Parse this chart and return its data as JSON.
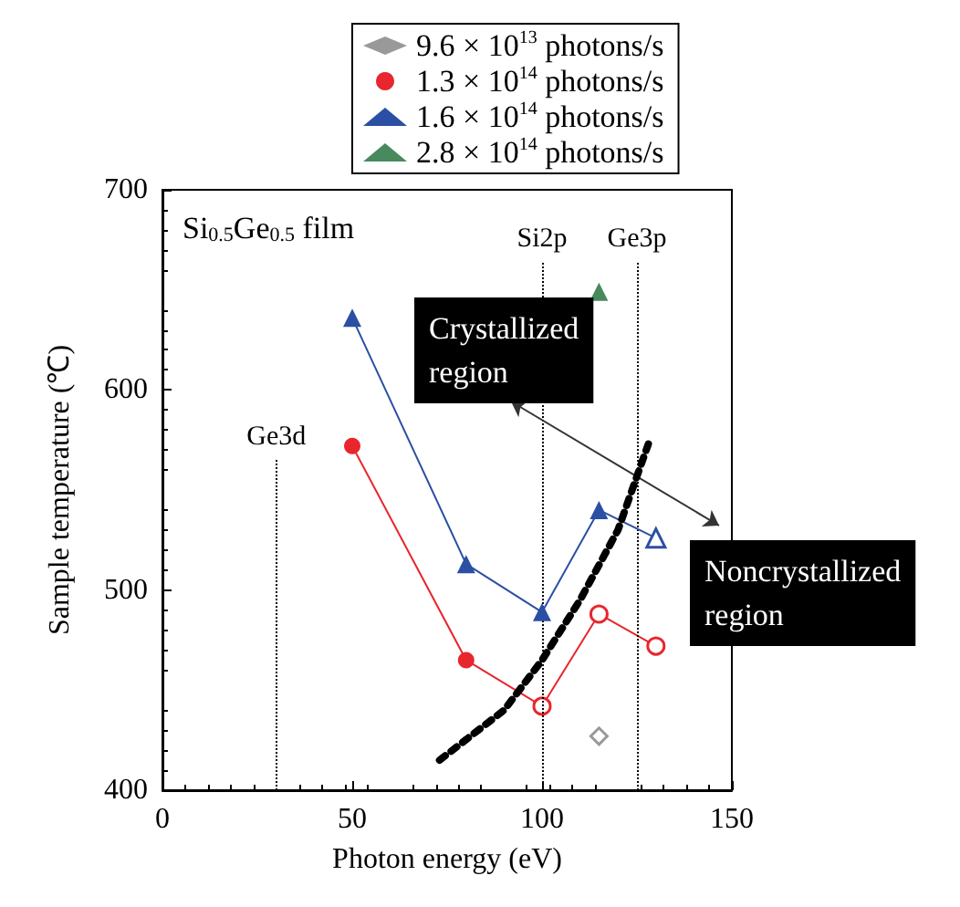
{
  "chart_data": {
    "type": "line",
    "xlabel": "Photon energy (eV)",
    "ylabel": "Sample temperature (℃)",
    "xlim": [
      0,
      150
    ],
    "xticks": [
      0,
      50,
      100,
      150
    ],
    "ylim": [
      400,
      700
    ],
    "yticks": [
      400,
      500,
      600,
      700
    ],
    "grid": false,
    "legend": "top",
    "series": [
      {
        "name": "9.6 × 10$^{13}$ photons/s",
        "type": "scatter",
        "color": "#808080",
        "marker": "diamond",
        "colors": [
          "#ffffff"
        ],
        "x": [
          115
        ],
        "values": [
          427
        ]
      },
      {
        "name": "1.3 × 10$^{14}$ photons/s",
        "color": "#e8262d",
        "marker": "circle",
        "colors": [
          "#e8262d",
          "#e8262d",
          "#ffffff",
          "#ffffff",
          "#ffffff"
        ],
        "x": [
          50,
          80,
          100,
          115,
          130
        ],
        "values": [
          572,
          465,
          442,
          488,
          472
        ]
      },
      {
        "name": "1.6 × 10$^{14}$ photons/s",
        "color": "#2b4fa3",
        "marker": "triangle",
        "colors": [
          "#2b4fa3",
          "#2b4fa3",
          "#2b4fa3",
          "#2b4fa3",
          "#ffffff"
        ],
        "x": [
          50,
          80,
          100,
          115,
          130
        ],
        "values": [
          636,
          513,
          489,
          540,
          526
        ]
      },
      {
        "name": "2.8 × 10$^{14}$ photons/s",
        "type": "scatter",
        "color": "#1a6b35",
        "marker": "triangle",
        "x": [
          115
        ],
        "values": [
          649
        ]
      },
      {
        "color": "#000000",
        "marker": "none",
        "line_style": "dotted",
        "x": [
          73,
          90,
          100,
          110,
          120,
          128
        ],
        "values": [
          415,
          440,
          465,
          495,
          530,
          573
        ]
      }
    ],
    "ref_lines": [
      {
        "axis": "x",
        "value": 30,
        "label": "Ge3d",
        "line_style": "dotted",
        "color": "#000000"
      },
      {
        "axis": "x",
        "value": 100,
        "label": "Si2p",
        "line_style": "dotted",
        "color": "#000000"
      },
      {
        "axis": "x",
        "value": 125,
        "label": "Ge3p",
        "line_style": "dotted",
        "color": "#000000"
      }
    ],
    "annotations": [
      "Si$_{0.5}$Ge$_{0.5}$ film",
      "Crystallized\nregion",
      "Noncrystallized\nregion"
    ]
  }
}
